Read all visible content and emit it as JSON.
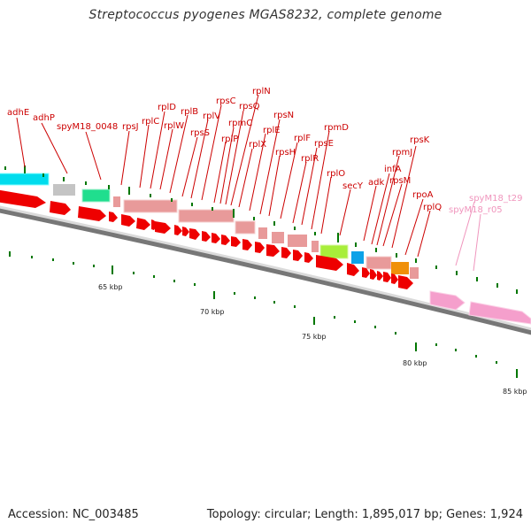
{
  "title": "Streptococcus pyogenes MGAS8232, complete genome",
  "footer": {
    "accession": "Accession: NC_003485",
    "stats": "Topology: circular; Length: 1,895,017 bp; Genes: 1,924"
  },
  "colors": {
    "gene_label": "#cc0000",
    "rna_label": "#f095bd",
    "arrow_red": "#ee0000",
    "arrow_pink": "#f59fcc",
    "tick": "#007700",
    "backbone": "#888888"
  },
  "scale_labels": [
    "65 kbp",
    "70 kbp",
    "75 kbp",
    "80 kbp",
    "85 kbp"
  ],
  "gene_labels": [
    "adhE",
    "adhP",
    "spyM18_0048",
    "rpsJ",
    "rplC",
    "rplD",
    "rplW",
    "rplB",
    "rpsS",
    "rplV",
    "rpsC",
    "rplP",
    "rpmC",
    "rpsQ",
    "rplN",
    "rplX",
    "rplE",
    "rpsN",
    "rpsH",
    "rplF",
    "rplR",
    "rpsE",
    "rpmD",
    "rplO",
    "secY",
    "adk",
    "infA",
    "rpmJ",
    "rpsM",
    "rpsK",
    "rpoA",
    "rplQ"
  ],
  "rna_labels": [
    "spyM18_t29",
    "spyM18_r05"
  ]
}
